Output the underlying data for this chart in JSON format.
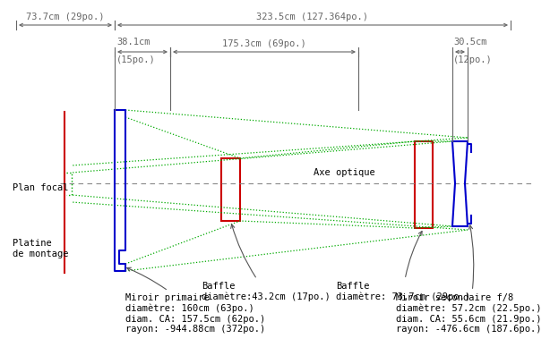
{
  "bg_color": "#ffffff",
  "text_color": "#000000",
  "dim_color": "#666666",
  "beam_color": "#00aa00",
  "primary_color": "#0000cc",
  "secondary_color": "#0000cc",
  "focal_color": "#cc0000",
  "baffle_color": "#cc0000",
  "dim_top1_label": "73.7cm (29po.)",
  "dim_top2_label": "323.5cm (127.364po.)",
  "dim_mid1_label": "38.1cm",
  "dim_mid1_sub": "(15po.)",
  "dim_mid2_label": "175.3cm (69po.)",
  "dim_right_label": "30.5cm",
  "dim_right_sub": "(12po.)",
  "ann_plan_focal": "Plan focal",
  "ann_platine": "Platine\nde montage",
  "ann_axe": "Axe optique",
  "ann_baffle1": "Baffle\ndiamètre:43.2cm (17po.)",
  "ann_baffle2": "Baffle\ndiamètre: 73.7cm (29po.)",
  "ann_miroir_p": "Miroir primaire\ndiamètre: 160cm (63po.)\ndiam. CA: 157.5cm (62po.)\nrayon: -944.88cm (372po.)",
  "ann_miroir_s": "Miroir secondaire f/8\ndiamètre: 57.2cm (22.5po.)\ndiam. CA: 55.6cm (21.9po.)\nrayon: -476.6cm (187.6po.)"
}
